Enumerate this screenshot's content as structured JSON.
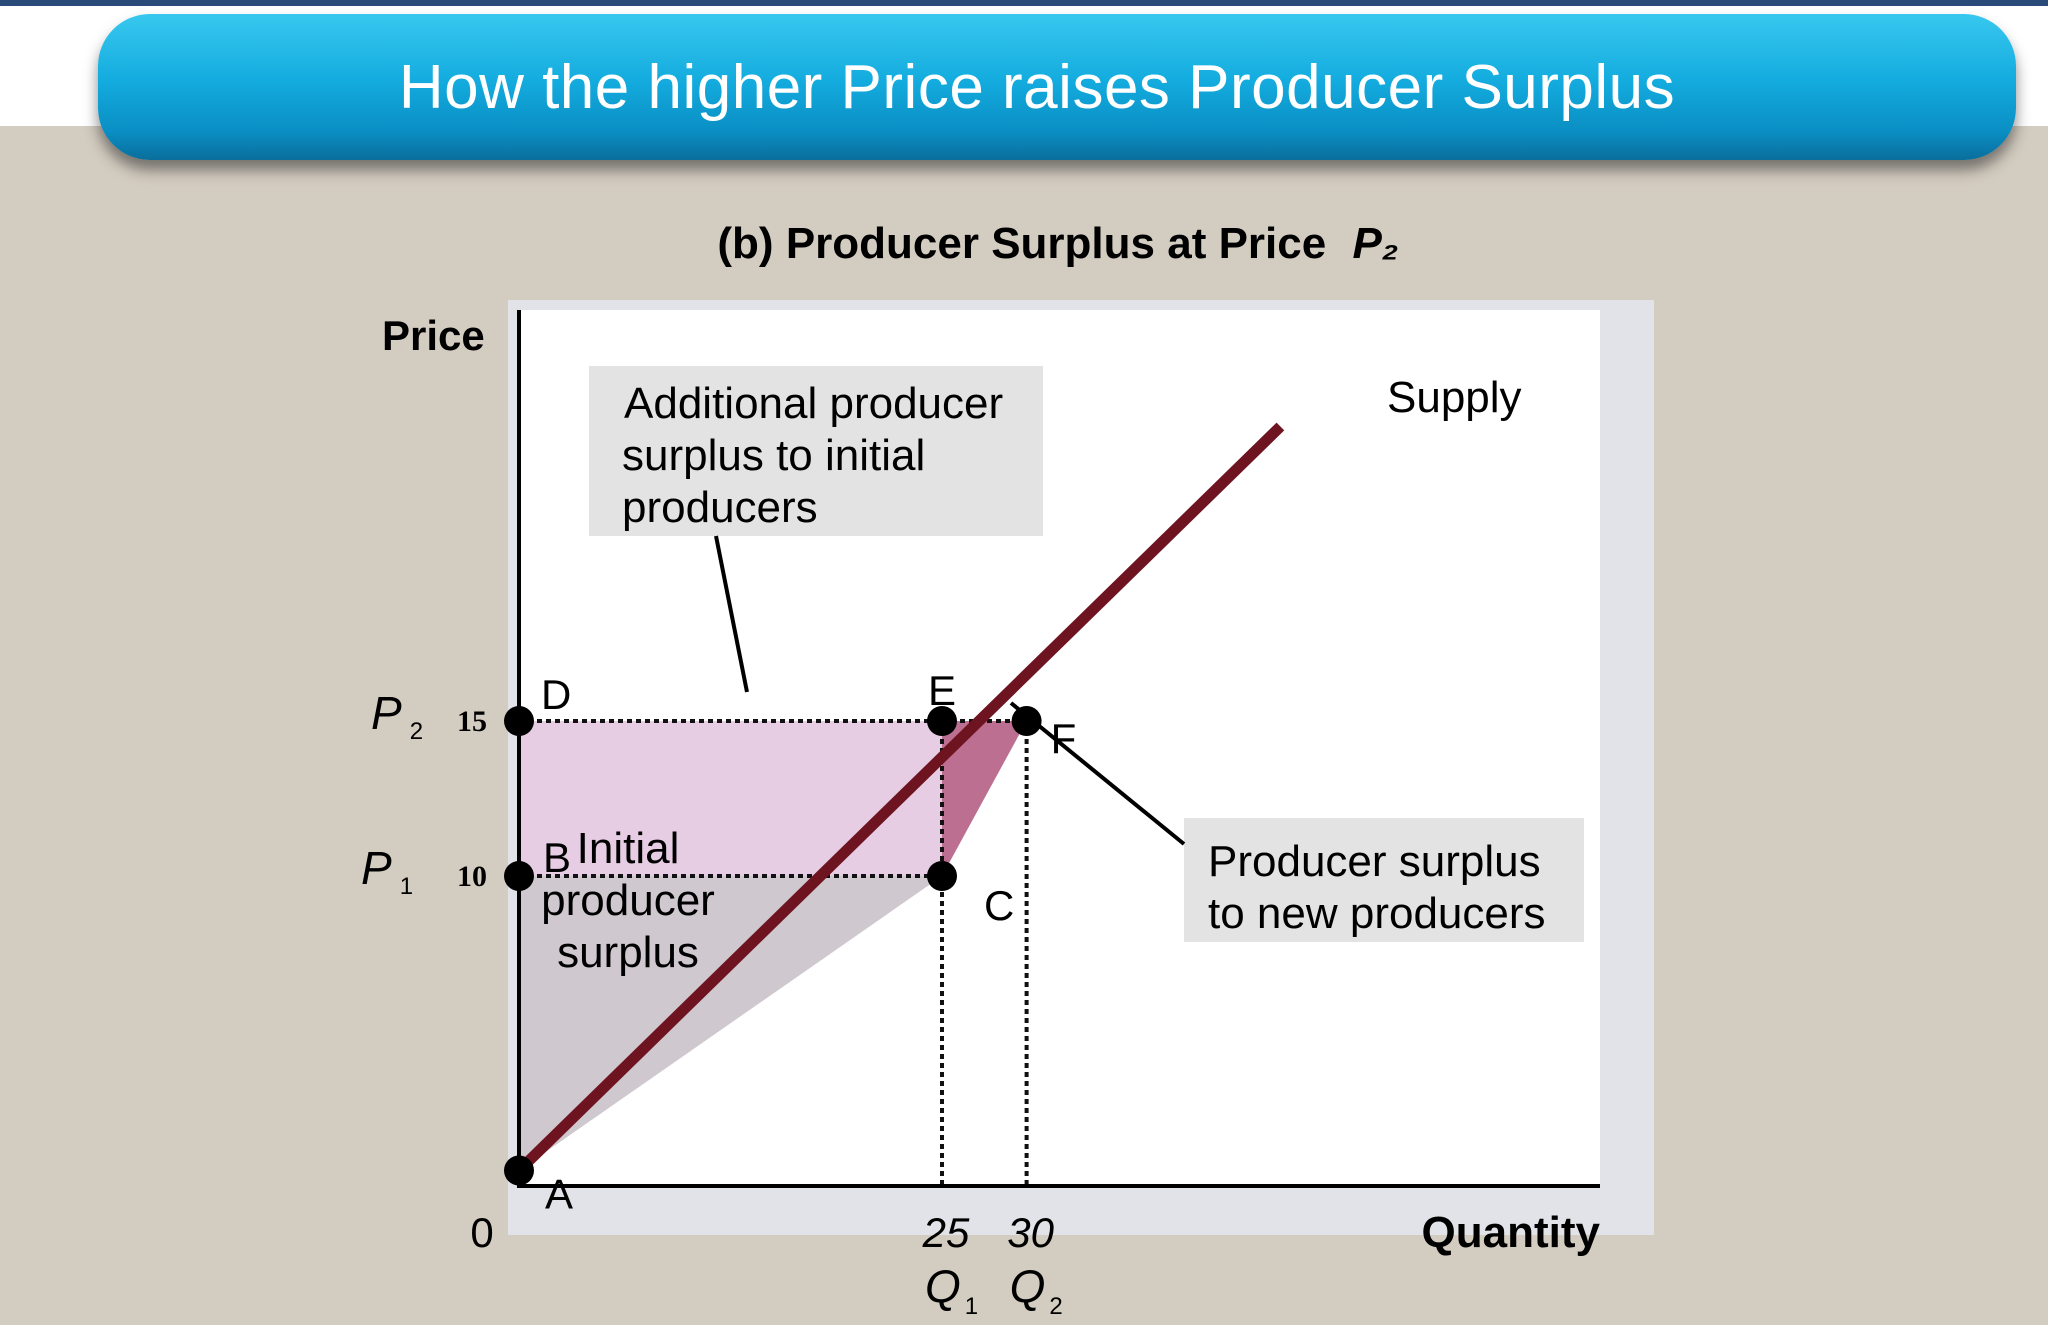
{
  "header": {
    "title": "How the higher Price raises Producer Surplus"
  },
  "chart_data": {
    "type": "line",
    "title": "(b) Producer Surplus at Price",
    "title_symbol": "P₂",
    "xlabel": "Quantity",
    "ylabel": "Price",
    "origin_label": "0",
    "xlim": [
      0,
      50
    ],
    "ylim": [
      0,
      25
    ],
    "x_ticks": [
      {
        "value": 25,
        "label": "25",
        "symbol": "Q",
        "sub": "1"
      },
      {
        "value": 30,
        "label": "30",
        "symbol": "Q",
        "sub": "2"
      }
    ],
    "y_ticks": [
      {
        "value": 15,
        "label": "15",
        "symbol": "P",
        "sub": "2"
      },
      {
        "value": 10,
        "label": "10",
        "symbol": "P",
        "sub": "1"
      }
    ],
    "series": [
      {
        "name": "Supply",
        "x": [
          0,
          45
        ],
        "y": [
          0.5,
          24.5
        ],
        "color": "#6e1421"
      }
    ],
    "points": [
      {
        "label": "A",
        "x": 0,
        "y": 0.5
      },
      {
        "label": "B",
        "x": 0,
        "y": 10
      },
      {
        "label": "C",
        "x": 25,
        "y": 10
      },
      {
        "label": "D",
        "x": 0,
        "y": 15
      },
      {
        "label": "E",
        "x": 25,
        "y": 15
      },
      {
        "label": "F",
        "x": 30,
        "y": 15
      }
    ],
    "regions": [
      {
        "name": "initial-surplus",
        "points": [
          [
            0,
            0.5
          ],
          [
            0,
            10
          ],
          [
            25,
            10
          ]
        ],
        "color": "#cfc8ce"
      },
      {
        "name": "additional-surplus",
        "points": [
          [
            0,
            10
          ],
          [
            0,
            15
          ],
          [
            25,
            15
          ],
          [
            25,
            10
          ]
        ],
        "color": "#e6cde3"
      },
      {
        "name": "new-producer-surplus",
        "points": [
          [
            25,
            10
          ],
          [
            25,
            15
          ],
          [
            30,
            15
          ]
        ],
        "color": "#bc6f90"
      }
    ],
    "annotations": [
      {
        "id": "additional",
        "lines": [
          "Additional producer",
          "surplus to initial",
          "producers"
        ]
      },
      {
        "id": "new",
        "lines": [
          "Producer surplus",
          "to new producers"
        ]
      },
      {
        "id": "initial",
        "lines": [
          "Initial",
          "producer",
          "surplus"
        ]
      }
    ],
    "grid": false,
    "legend": "none",
    "colors": {
      "supply": "#6e1421",
      "point": "#000000",
      "annotation_box": "#e3e3e3",
      "plot_background": "#ffffff"
    }
  }
}
